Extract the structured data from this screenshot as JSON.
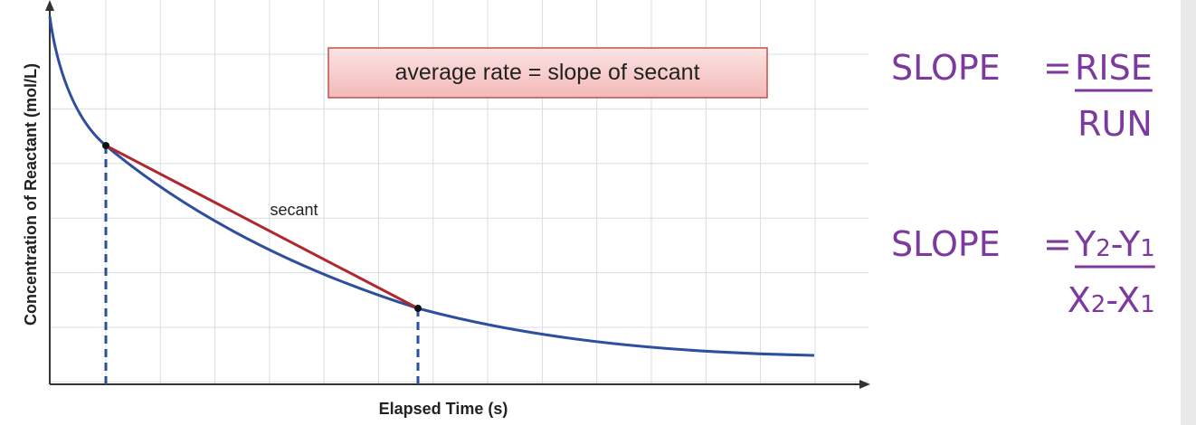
{
  "axis_labels": {
    "y": "Concentration of Reactant (mol/L)",
    "x": "Elapsed Time (s)"
  },
  "annotation_box": "average rate = slope of secant",
  "secant_label": "secant",
  "formulas": [
    {
      "left": "SLOPE",
      "equals": "=",
      "numerator": "RISE",
      "denominator": "RUN"
    },
    {
      "left": "SLOPE",
      "equals": "=",
      "numerator": "Y2-Y1",
      "denominator": "X2-X1"
    }
  ]
}
